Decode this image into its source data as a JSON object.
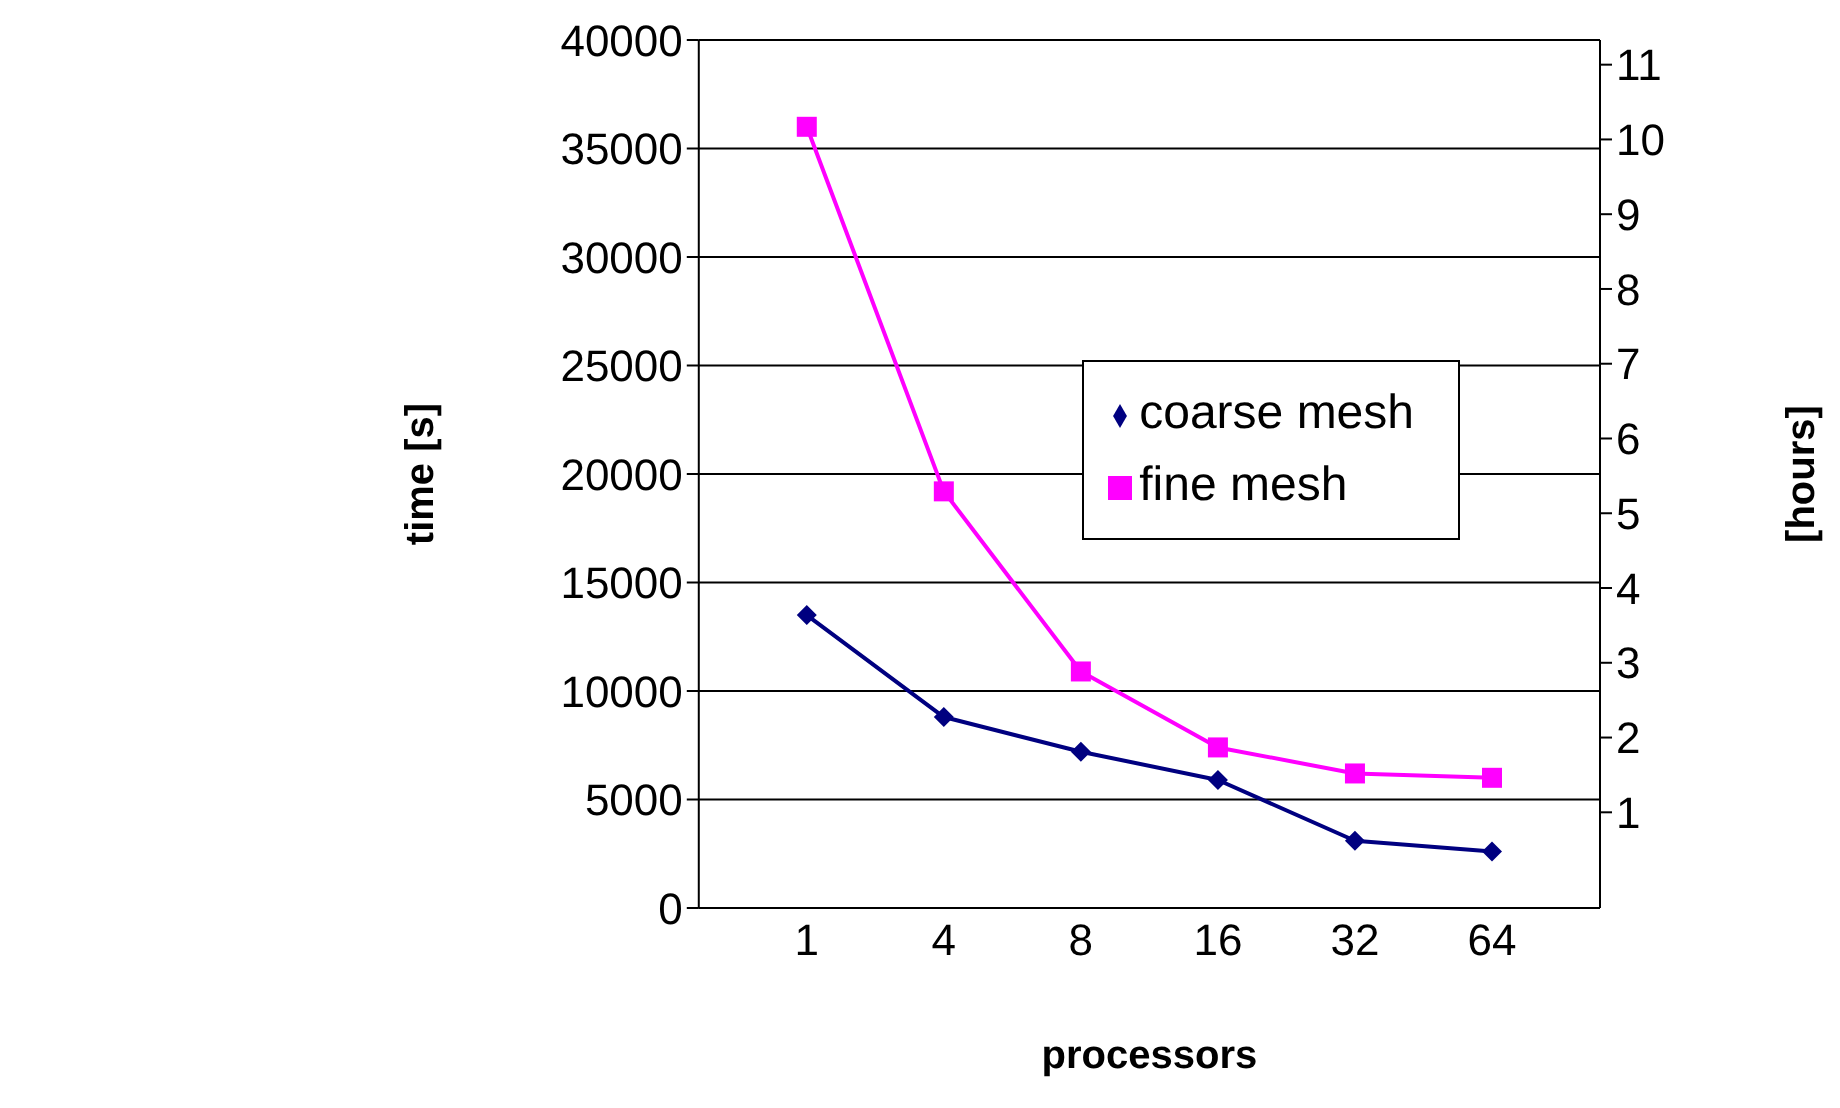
{
  "chart_data": {
    "type": "line",
    "xlabel": "processors",
    "ylabel": "time [s]",
    "y2label": "[hours]",
    "categories": [
      "1",
      "4",
      "8",
      "16",
      "32",
      "64"
    ],
    "series": [
      {
        "name": "coarse mesh",
        "color": "#000080",
        "marker": "diamond",
        "values": [
          13500,
          8800,
          7200,
          5900,
          3100,
          2600
        ]
      },
      {
        "name": "fine mesh",
        "color": "#ff00ff",
        "marker": "square",
        "values": [
          36000,
          19200,
          10900,
          7400,
          6200,
          6000
        ]
      }
    ],
    "ylim": [
      0,
      40000
    ],
    "yticks": [
      0,
      5000,
      10000,
      15000,
      20000,
      25000,
      30000,
      35000,
      40000
    ],
    "y2lim": [
      -0.28,
      11.33
    ],
    "y2ticks": [
      1,
      2,
      3,
      4,
      5,
      6,
      7,
      8,
      9,
      10,
      11
    ],
    "grid": "y",
    "legend": "right",
    "line_style": "solid"
  }
}
